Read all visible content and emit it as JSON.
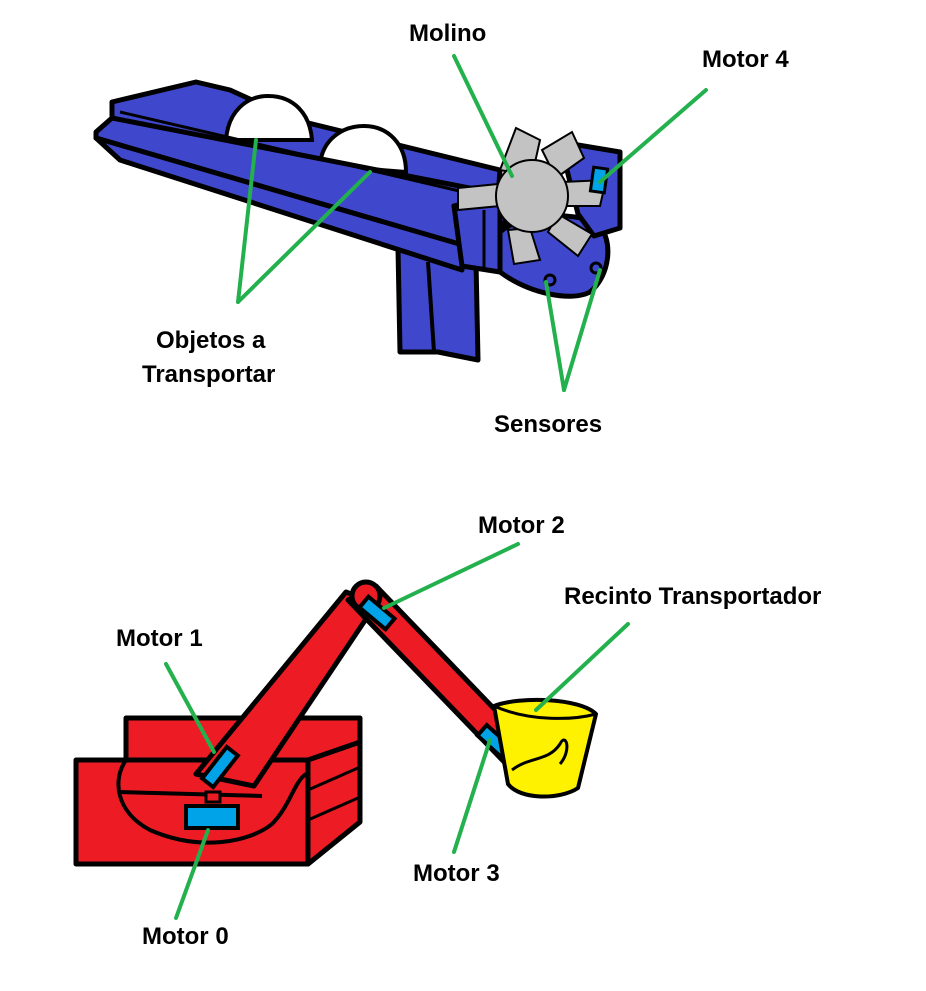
{
  "labels": {
    "molino": "Molino",
    "motor4": "Motor 4",
    "objetos_line1": "Objetos a",
    "objetos_line2": "Transportar",
    "sensores": "Sensores",
    "motor2": "Motor 2",
    "recinto": "Recinto Transportador",
    "motor1": "Motor 1",
    "motor3": "Motor 3",
    "motor0": "Motor 0"
  },
  "colors": {
    "conveyor": "#3f48cc",
    "mill": "#c3c3c3",
    "arm": "#ed1c24",
    "bucket": "#fff200",
    "motor": "#00a2e8",
    "leader": "#22b14c",
    "outline": "#000000",
    "text": "#000000"
  }
}
